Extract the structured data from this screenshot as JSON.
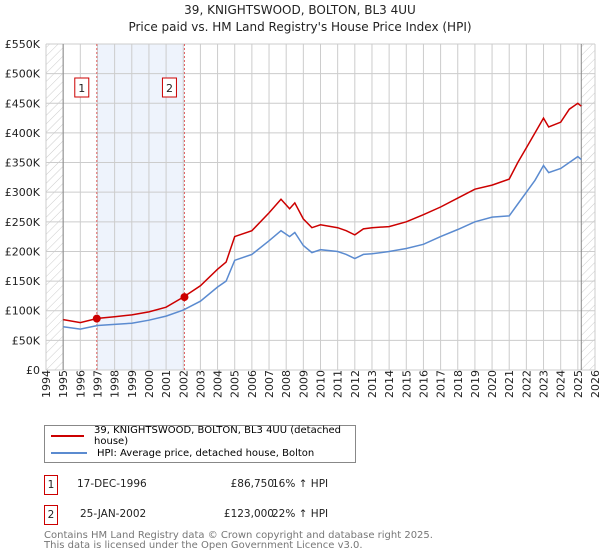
{
  "chart_data": {
    "type": "line",
    "title": "39, KNIGHTSWOOD, BOLTON, BL3 4UU",
    "subtitle": "Price paid vs. HM Land Registry's House Price Index (HPI)",
    "xlim": [
      1994,
      2026
    ],
    "ylim": [
      0,
      550000
    ],
    "x_ticks": [
      "1994",
      "1995",
      "1996",
      "1997",
      "1998",
      "1999",
      "2000",
      "2001",
      "2002",
      "2003",
      "2004",
      "2005",
      "2006",
      "2007",
      "2008",
      "2009",
      "2010",
      "2011",
      "2012",
      "2013",
      "2014",
      "2015",
      "2016",
      "2017",
      "2018",
      "2019",
      "2020",
      "2021",
      "2022",
      "2023",
      "2024",
      "2025",
      "2026"
    ],
    "y_ticks": [
      {
        "v": 0,
        "label": "£0"
      },
      {
        "v": 50000,
        "label": "£50K"
      },
      {
        "v": 100000,
        "label": "£100K"
      },
      {
        "v": 150000,
        "label": "£150K"
      },
      {
        "v": 200000,
        "label": "£200K"
      },
      {
        "v": 250000,
        "label": "£250K"
      },
      {
        "v": 300000,
        "label": "£300K"
      },
      {
        "v": 350000,
        "label": "£350K"
      },
      {
        "v": 400000,
        "label": "£400K"
      },
      {
        "v": 450000,
        "label": "£450K"
      },
      {
        "v": 500000,
        "label": "£500K"
      },
      {
        "v": 550000,
        "label": "£550K"
      }
    ],
    "grid": true,
    "shaded_range": [
      1996.96,
      2002.07
    ],
    "hatched_ranges": [
      [
        1994,
        1995
      ],
      [
        2025.2,
        2026
      ]
    ],
    "x": [
      1995,
      1996,
      1997,
      1998,
      1999,
      2000,
      2001,
      2002,
      2003,
      2004,
      2004.5,
      2005,
      2006,
      2007,
      2007.7,
      2008.2,
      2008.5,
      2009,
      2009.5,
      2010,
      2011,
      2011.5,
      2012,
      2012.5,
      2013,
      2014,
      2015,
      2016,
      2017,
      2018,
      2019,
      2020,
      2021,
      2021.5,
      2022,
      2022.5,
      2023,
      2023.3,
      2024,
      2024.5,
      2025,
      2025.2
    ],
    "series": [
      {
        "name": "39, KNIGHTSWOOD, BOLTON, BL3 4UU (detached house)",
        "color": "#cc0000",
        "values": [
          85000,
          80000,
          87000,
          90000,
          93000,
          98000,
          106000,
          123000,
          142000,
          170000,
          182000,
          225000,
          235000,
          265000,
          288000,
          272000,
          282000,
          255000,
          240000,
          245000,
          240000,
          235000,
          228000,
          238000,
          240000,
          242000,
          250000,
          262000,
          275000,
          290000,
          305000,
          312000,
          322000,
          350000,
          375000,
          400000,
          425000,
          410000,
          418000,
          440000,
          450000,
          445000
        ]
      },
      {
        "name": "HPI: Average price, detached house, Bolton",
        "color": "#5b8bd0",
        "values": [
          73000,
          69000,
          75000,
          77000,
          79000,
          84000,
          91000,
          101000,
          116000,
          140000,
          150000,
          185000,
          195000,
          218000,
          235000,
          225000,
          232000,
          210000,
          198000,
          203000,
          200000,
          195000,
          188000,
          195000,
          196000,
          200000,
          205000,
          212000,
          225000,
          237000,
          250000,
          258000,
          260000,
          280000,
          300000,
          320000,
          345000,
          333000,
          340000,
          350000,
          360000,
          355000
        ]
      }
    ],
    "sales": [
      {
        "id": "1",
        "x": 1996.96,
        "price": 86750,
        "date": "17-DEC-1996",
        "price_label": "£86,750",
        "hpi": "16% ↑ HPI"
      },
      {
        "id": "2",
        "x": 2002.07,
        "price": 123000,
        "date": "25-JAN-2002",
        "price_label": "£123,000",
        "hpi": "22% ↑ HPI"
      }
    ]
  },
  "footer": {
    "line1": "Contains HM Land Registry data © Crown copyright and database right 2025.",
    "line2": "This data is licensed under the Open Government Licence v3.0."
  }
}
